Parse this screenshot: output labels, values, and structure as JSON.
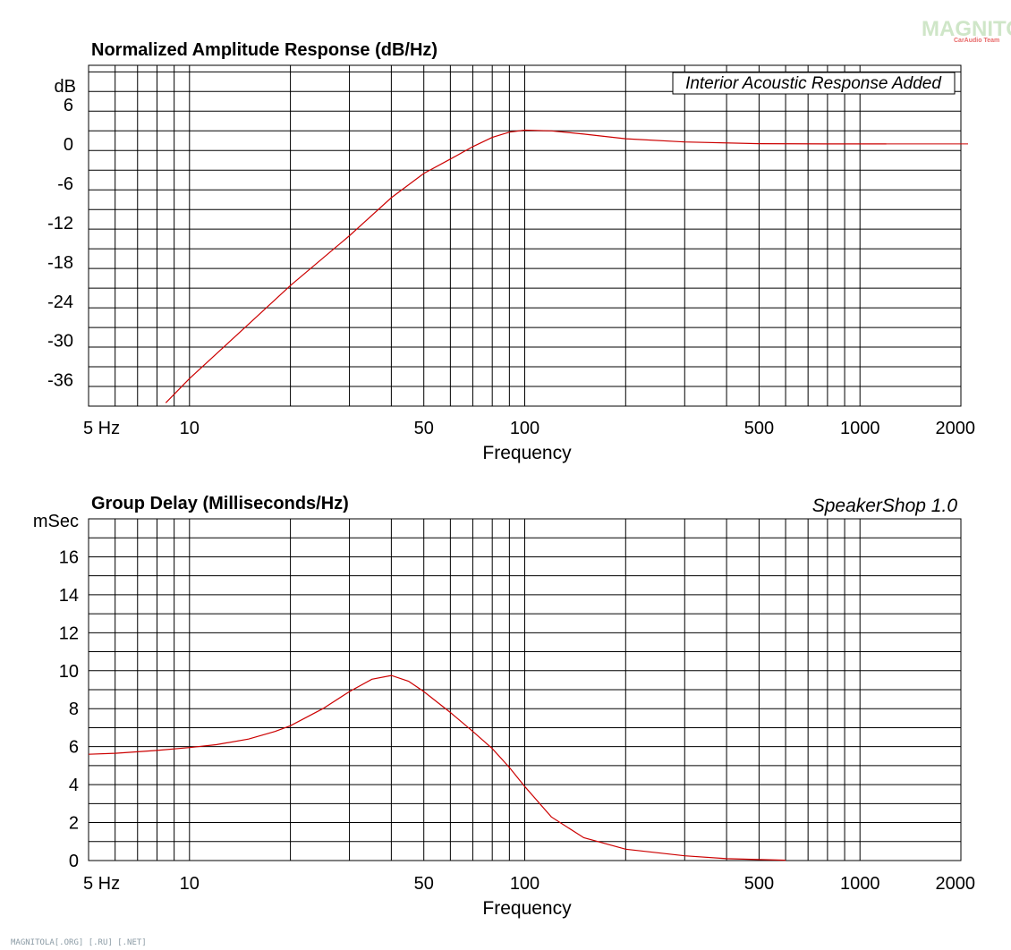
{
  "logo": {
    "name": "MAGNITOLA",
    "sub": "CarAudio Team",
    "color": "#e86a6a",
    "green": "#cfe6c8"
  },
  "footer_text": "MAGNITOLA[.ORG] [.RU] [.NET]",
  "credit": "SpeakerShop 1.0",
  "colors": {
    "curve": "#cc0000",
    "grid": "#000000"
  },
  "chart_data": [
    {
      "type": "line",
      "title": "Normalized Amplitude Response (dB/Hz)",
      "ylabel": "dB",
      "xlabel": "Frequency",
      "annotation": "Interior Acoustic Response Added",
      "x_scale": "log",
      "xlim": [
        5,
        2000
      ],
      "ylim": [
        -40,
        12
      ],
      "x_tick_labels": [
        {
          "v": 5,
          "t": "5  Hz"
        },
        {
          "v": 10,
          "t": "10"
        },
        {
          "v": 50,
          "t": "50"
        },
        {
          "v": 100,
          "t": "100"
        },
        {
          "v": 500,
          "t": "500"
        },
        {
          "v": 1000,
          "t": "1000"
        },
        {
          "v": 2000,
          "t": "2000"
        }
      ],
      "y_tick_labels": [
        {
          "v": 6,
          "t": "6"
        },
        {
          "v": 0,
          "t": "0"
        },
        {
          "v": -6,
          "t": "-6"
        },
        {
          "v": -12,
          "t": "-12"
        },
        {
          "v": -18,
          "t": "-18"
        },
        {
          "v": -24,
          "t": "-24"
        },
        {
          "v": -30,
          "t": "-30"
        },
        {
          "v": -36,
          "t": "-36"
        }
      ],
      "series": [
        {
          "x": [
            8.5,
            10,
            15,
            20,
            30,
            40,
            50,
            60,
            70,
            80,
            90,
            100,
            120,
            150,
            200,
            300,
            500,
            800,
            1200
          ],
          "y": [
            -39.5,
            -35.8,
            -27.5,
            -21.6,
            -14.0,
            -8.2,
            -4.5,
            -2.3,
            -0.4,
            1.0,
            1.8,
            2.1,
            2.0,
            1.5,
            0.8,
            0.3,
            0.05,
            0.0,
            0.0
          ]
        }
      ],
      "reference_line": {
        "y": 0,
        "x_end": 2000
      }
    },
    {
      "type": "line",
      "title": "Group Delay (Milliseconds/Hz)",
      "ylabel": "mSec",
      "xlabel": "Frequency",
      "x_scale": "log",
      "xlim": [
        5,
        2000
      ],
      "ylim": [
        0,
        18
      ],
      "x_tick_labels": [
        {
          "v": 5,
          "t": "5  Hz"
        },
        {
          "v": 10,
          "t": "10"
        },
        {
          "v": 50,
          "t": "50"
        },
        {
          "v": 100,
          "t": "100"
        },
        {
          "v": 500,
          "t": "500"
        },
        {
          "v": 1000,
          "t": "1000"
        },
        {
          "v": 2000,
          "t": "2000"
        }
      ],
      "y_tick_labels": [
        {
          "v": 0,
          "t": "0"
        },
        {
          "v": 2,
          "t": "2"
        },
        {
          "v": 4,
          "t": "4"
        },
        {
          "v": 6,
          "t": "6"
        },
        {
          "v": 8,
          "t": "8"
        },
        {
          "v": 10,
          "t": "10"
        },
        {
          "v": 12,
          "t": "12"
        },
        {
          "v": 14,
          "t": "14"
        },
        {
          "v": 16,
          "t": "16"
        }
      ],
      "series": [
        {
          "x": [
            5,
            6,
            8,
            10,
            12,
            15,
            18,
            20,
            25,
            30,
            35,
            40,
            45,
            50,
            60,
            70,
            80,
            90,
            100,
            120,
            150,
            200,
            300,
            400,
            500,
            600
          ],
          "y": [
            5.6,
            5.65,
            5.8,
            5.95,
            6.1,
            6.4,
            6.8,
            7.1,
            8.0,
            8.9,
            9.55,
            9.75,
            9.45,
            8.9,
            7.8,
            6.8,
            5.9,
            4.9,
            3.9,
            2.3,
            1.2,
            0.6,
            0.25,
            0.1,
            0.05,
            0.02
          ]
        }
      ]
    }
  ]
}
